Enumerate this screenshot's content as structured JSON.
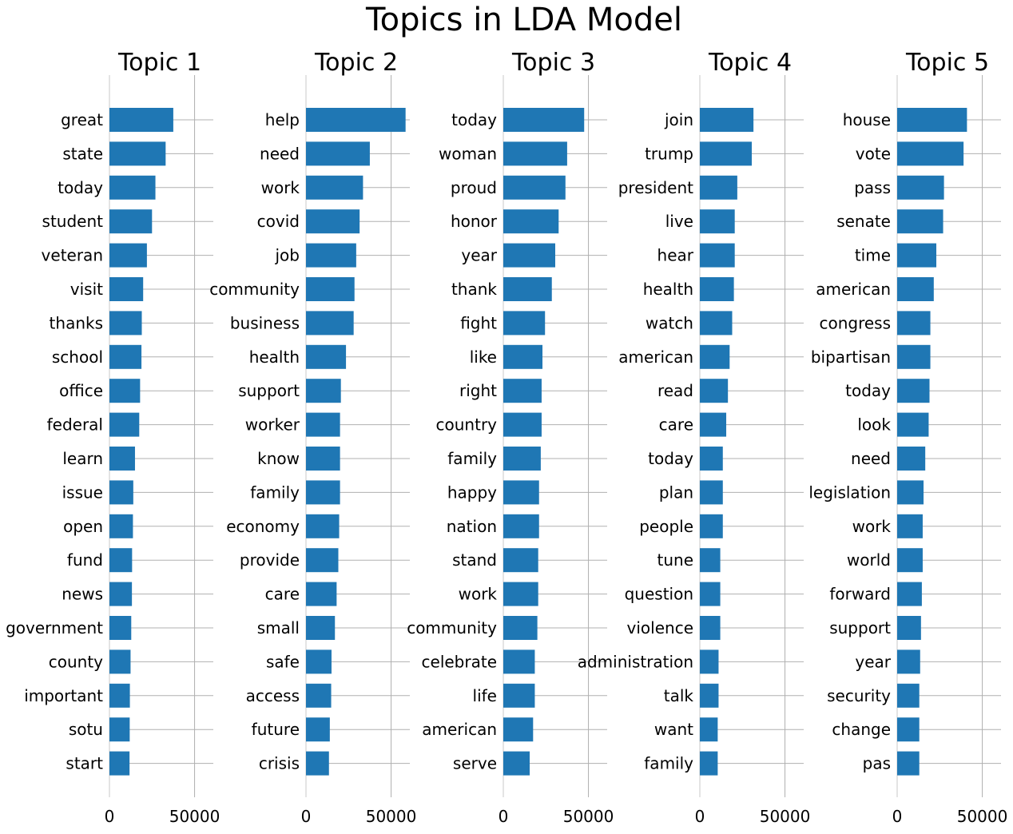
{
  "chart_data": {
    "type": "bar",
    "orientation": "horizontal",
    "title": "Topics in LDA Model",
    "bar_color": "#1f77b4",
    "grid": true,
    "xlim": [
      0,
      61000
    ],
    "xticks": [
      0,
      50000
    ],
    "xtick_labels": [
      "0",
      "50000"
    ],
    "panels": [
      {
        "title": "Topic 1",
        "categories": [
          "great",
          "state",
          "today",
          "student",
          "veteran",
          "visit",
          "thanks",
          "school",
          "office",
          "federal",
          "learn",
          "issue",
          "open",
          "fund",
          "news",
          "government",
          "county",
          "important",
          "sotu",
          "start"
        ],
        "values": [
          37500,
          33000,
          27000,
          25000,
          22000,
          19800,
          19000,
          18800,
          18000,
          17500,
          15000,
          14000,
          13800,
          13300,
          13200,
          12800,
          12400,
          12000,
          11900,
          11800
        ]
      },
      {
        "title": "Topic 2",
        "categories": [
          "help",
          "need",
          "work",
          "covid",
          "job",
          "community",
          "business",
          "health",
          "support",
          "worker",
          "know",
          "family",
          "economy",
          "provide",
          "care",
          "small",
          "safe",
          "access",
          "future",
          "crisis"
        ],
        "values": [
          58500,
          37500,
          33500,
          31500,
          29500,
          28500,
          28000,
          23500,
          20500,
          20000,
          20000,
          20000,
          19500,
          19000,
          18000,
          17000,
          15000,
          14800,
          14000,
          13500
        ]
      },
      {
        "title": "Topic 3",
        "categories": [
          "today",
          "woman",
          "proud",
          "honor",
          "year",
          "thank",
          "fight",
          "like",
          "right",
          "country",
          "family",
          "happy",
          "nation",
          "stand",
          "work",
          "community",
          "celebrate",
          "life",
          "american",
          "serve"
        ],
        "values": [
          47500,
          37500,
          36500,
          32500,
          30500,
          28500,
          24500,
          23000,
          22500,
          22500,
          22000,
          21000,
          21000,
          20500,
          20500,
          20000,
          18500,
          18500,
          17500,
          15500
        ]
      },
      {
        "title": "Topic 4",
        "categories": [
          "join",
          "trump",
          "president",
          "live",
          "hear",
          "health",
          "watch",
          "american",
          "read",
          "care",
          "today",
          "plan",
          "people",
          "tune",
          "question",
          "violence",
          "administration",
          "talk",
          "want",
          "family"
        ],
        "values": [
          31500,
          30500,
          22000,
          20500,
          20500,
          20000,
          19000,
          17500,
          16500,
          15500,
          13500,
          13500,
          13500,
          12000,
          12000,
          12000,
          11000,
          11000,
          10500,
          10500
        ]
      },
      {
        "title": "Topic 5",
        "categories": [
          "house",
          "vote",
          "pass",
          "senate",
          "time",
          "american",
          "congress",
          "bipartisan",
          "today",
          "look",
          "need",
          "legislation",
          "work",
          "world",
          "forward",
          "support",
          "year",
          "security",
          "change",
          "pas"
        ],
        "values": [
          41000,
          39000,
          27500,
          27000,
          23000,
          21500,
          19500,
          19500,
          19000,
          18500,
          16500,
          15500,
          15000,
          15000,
          14500,
          14000,
          13500,
          13000,
          13000,
          13000
        ]
      }
    ]
  }
}
